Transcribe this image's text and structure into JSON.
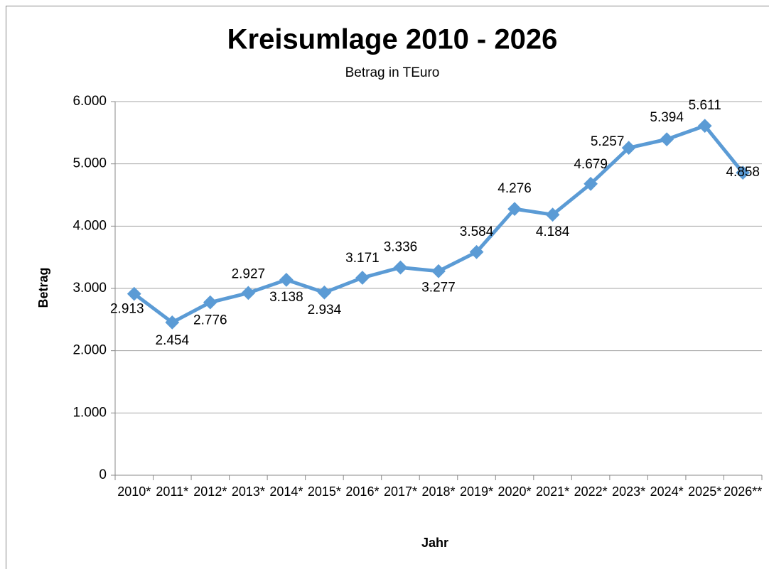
{
  "chart_data": {
    "type": "line",
    "title": "Kreisumlage 2010 - 2026",
    "subtitle": "Betrag in TEuro",
    "x_label": "Jahr",
    "y_label": "Betrag",
    "categories": [
      "2010*",
      "2011*",
      "2012*",
      "2013*",
      "2014*",
      "2015*",
      "2016*",
      "2017*",
      "2018*",
      "2019*",
      "2020*",
      "2021*",
      "2022*",
      "2023*",
      "2024*",
      "2025*",
      "2026**"
    ],
    "series": [
      {
        "name": "Betrag",
        "color": "#5b9bd5",
        "values": [
          2913,
          2454,
          2776,
          2927,
          3138,
          2934,
          3171,
          3336,
          3277,
          3584,
          4276,
          4184,
          4679,
          5257,
          5394,
          5611,
          4858
        ],
        "value_labels": [
          "2.913",
          "2.454",
          "2.776",
          "2.927",
          "3.138",
          "2.934",
          "3.171",
          "3.336",
          "3.277",
          "3.584",
          "4.276",
          "4.184",
          "4.679",
          "5.257",
          "5.394",
          "5.611",
          "4.858"
        ]
      }
    ],
    "ylim": [
      0,
      6000
    ],
    "yticks": [
      0,
      {
        "value": 1000,
        "label": "1.000"
      },
      {
        "value": 2000,
        "label": "2.000"
      },
      {
        "value": 3000,
        "label": "3.000"
      },
      {
        "value": 4000,
        "label": "4.000"
      },
      {
        "value": 5000,
        "label": "5.000"
      },
      {
        "value": 6000,
        "label": "6.000"
      }
    ],
    "grid": true
  }
}
